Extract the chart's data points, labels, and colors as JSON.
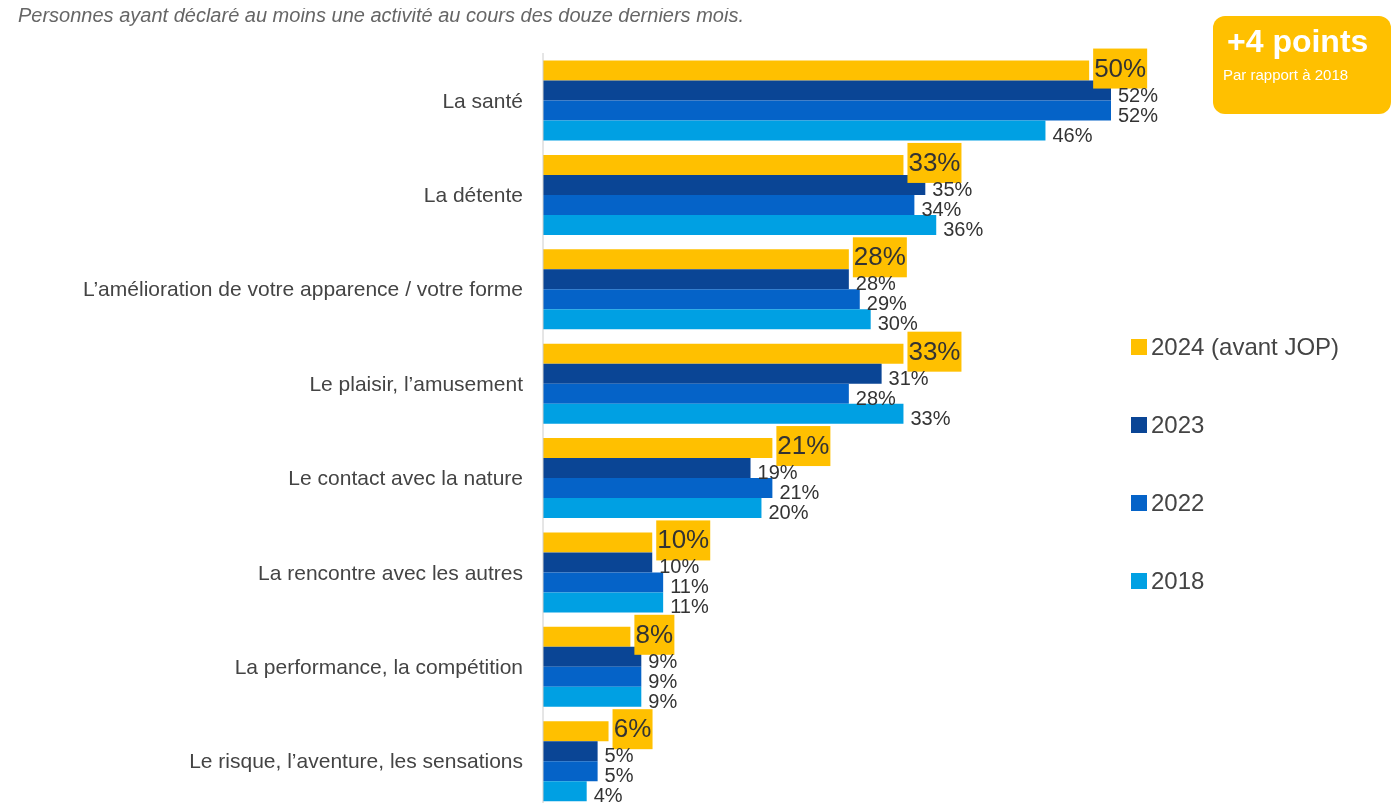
{
  "chart_data": {
    "type": "bar",
    "orientation": "horizontal",
    "subtitle": "Personnes ayant déclaré au moins une activité au cours des douze derniers mois.",
    "annotations": [
      "+4 points",
      "Par rapport à 2018"
    ],
    "categories": [
      "La santé",
      "La détente",
      "L’amélioration de votre apparence / votre forme",
      "Le plaisir, l’amusement",
      "Le contact avec la nature",
      "La rencontre avec les autres",
      "La performance, la compétition",
      "Le risque, l’aventure, les sensations"
    ],
    "series": [
      {
        "name": "2024 (avant JOP)",
        "color": "#ffc000",
        "values": [
          50,
          33,
          28,
          33,
          21,
          10,
          8,
          6
        ],
        "value_labels": [
          "50%",
          "33%",
          "28%",
          "33%",
          "21%",
          "10%",
          "8%",
          "6%"
        ]
      },
      {
        "name": "2023",
        "color": "#0a4595",
        "values": [
          52,
          35,
          28,
          31,
          19,
          10,
          9,
          5
        ],
        "value_labels": [
          "52%",
          "35%",
          "28%",
          "31%",
          "19%",
          "10%",
          "9%",
          "5%"
        ]
      },
      {
        "name": "2022",
        "color": "#0563c8",
        "values": [
          52,
          34,
          29,
          28,
          21,
          11,
          9,
          5
        ],
        "value_labels": [
          "52%",
          "34%",
          "29%",
          "28%",
          "21%",
          "11%",
          "9%",
          "5%"
        ]
      },
      {
        "name": "2018",
        "color": "#00a0e3",
        "values": [
          46,
          36,
          30,
          33,
          20,
          11,
          9,
          4
        ],
        "value_labels": [
          "46%",
          "36%",
          "30%",
          "33%",
          "20%",
          "11%",
          "9%",
          "4%"
        ]
      }
    ],
    "legend": "right"
  }
}
